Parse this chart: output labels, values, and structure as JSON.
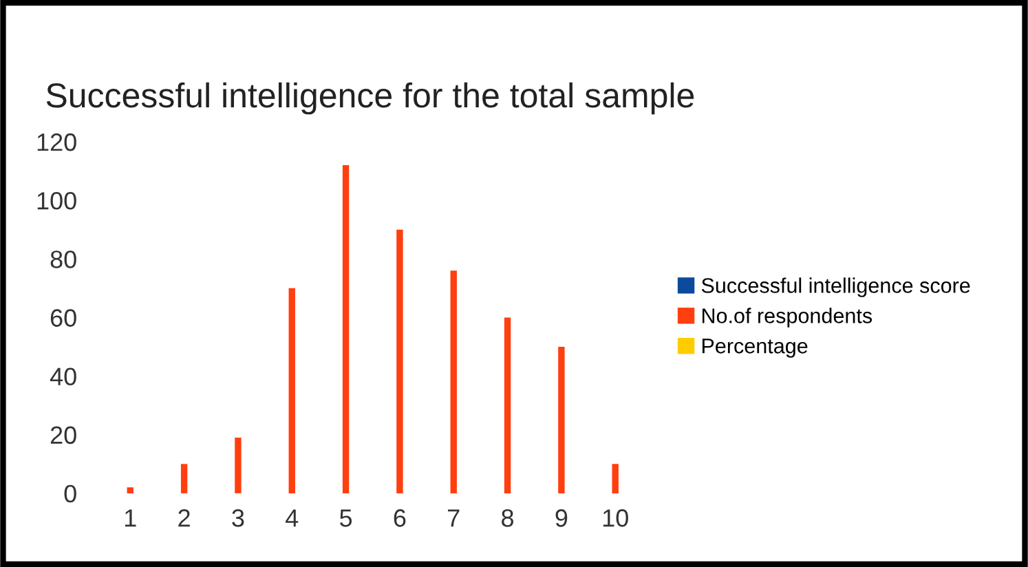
{
  "chart_data": {
    "type": "bar",
    "title": "Successful intelligence for the total sample",
    "categories": [
      "1",
      "2",
      "3",
      "4",
      "5",
      "6",
      "7",
      "8",
      "9",
      "10"
    ],
    "series": [
      {
        "name": "Successful intelligence score",
        "color": "#0b4a9c",
        "values": [
          null,
          null,
          null,
          null,
          null,
          null,
          null,
          null,
          null,
          null
        ]
      },
      {
        "name": "No.of respondents",
        "color": "#ff3f0f",
        "values": [
          2,
          10,
          19,
          70,
          112,
          90,
          76,
          60,
          50,
          10
        ]
      },
      {
        "name": "Percentage",
        "color": "#ffcc00",
        "values": [
          null,
          null,
          null,
          null,
          null,
          null,
          null,
          null,
          null,
          null
        ]
      }
    ],
    "ylim": [
      0,
      120
    ],
    "yticks": [
      0,
      20,
      40,
      60,
      80,
      100,
      120
    ],
    "grid": false,
    "legend": "right"
  }
}
